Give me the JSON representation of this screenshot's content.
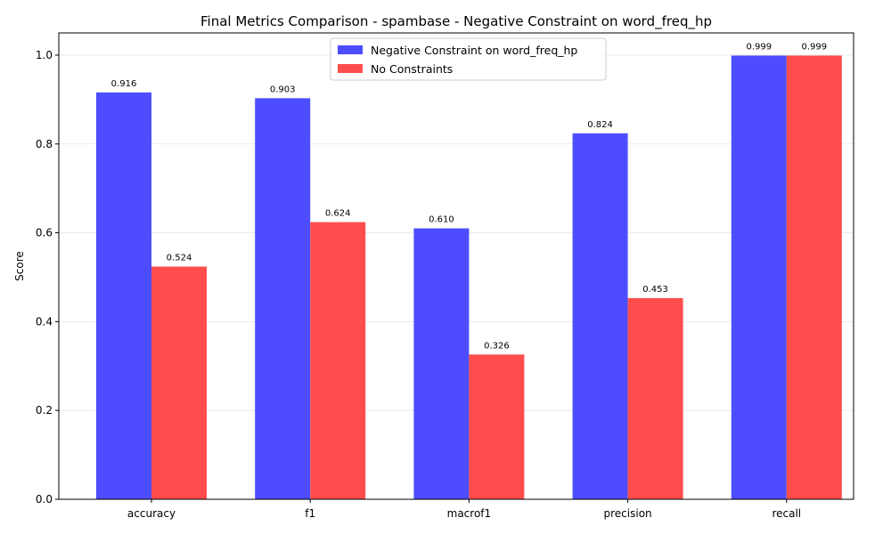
{
  "chart_data": {
    "type": "bar",
    "title": "Final Metrics Comparison - spambase - Negative Constraint on word_freq_hp",
    "xlabel": "",
    "ylabel": "Score",
    "ylim": [
      0,
      1.05
    ],
    "yticks": [
      "0.0",
      "0.2",
      "0.4",
      "0.6",
      "0.8",
      "1.0"
    ],
    "categories": [
      "accuracy",
      "f1",
      "macrof1",
      "precision",
      "recall"
    ],
    "series": [
      {
        "name": "Negative Constraint on word_freq_hp",
        "color": "#4d4dff",
        "values": [
          0.916,
          0.903,
          0.61,
          0.824,
          0.999
        ],
        "labels": [
          "0.916",
          "0.903",
          "0.610",
          "0.824",
          "0.999"
        ]
      },
      {
        "name": "No Constraints",
        "color": "#ff4d4d",
        "values": [
          0.524,
          0.624,
          0.326,
          0.453,
          0.999
        ],
        "labels": [
          "0.524",
          "0.624",
          "0.326",
          "0.453",
          "0.999"
        ]
      }
    ],
    "grid": "y",
    "legend": "top-center"
  }
}
